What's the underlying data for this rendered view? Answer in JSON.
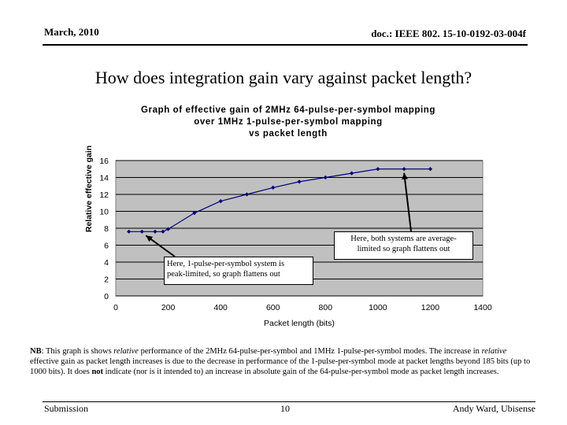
{
  "header": {
    "date": "March, 2010",
    "doc_id": "doc.: IEEE 802. 15-10-0192-03-004f"
  },
  "slide": {
    "title": "How does integration gain vary against packet length?"
  },
  "chart_data": {
    "type": "line",
    "title": "Graph of effective gain of 2MHz 64-pulse-per-symbol mapping over 1MHz 1-pulse-per-symbol mapping vs packet length",
    "title_lines": [
      "Graph of effective gain of 2MHz 64-pulse-per-symbol mapping",
      "over 1MHz 1-pulse-per-symbol mapping",
      "vs packet length"
    ],
    "xlabel": "Packet length (bits)",
    "ylabel": "Relative effective gain",
    "xlim": [
      0,
      1400
    ],
    "ylim": [
      0,
      16
    ],
    "xticks": [
      0,
      200,
      400,
      600,
      800,
      1000,
      1200,
      1400
    ],
    "yticks": [
      0,
      2,
      4,
      6,
      8,
      10,
      12,
      14,
      16
    ],
    "grid": "horizontal",
    "series": [
      {
        "name": "Relative effective gain",
        "x": [
          50,
          100,
          150,
          180,
          200,
          300,
          400,
          500,
          600,
          700,
          800,
          900,
          1000,
          1100,
          1200
        ],
        "y": [
          7.6,
          7.6,
          7.6,
          7.6,
          7.9,
          9.8,
          11.2,
          12.0,
          12.8,
          13.5,
          14.0,
          14.5,
          15.0,
          15.0,
          15.0
        ]
      }
    ],
    "annotations": [
      {
        "text": "Here, both systems are average-limited so graph flattens out",
        "line1": "Here, both systems are average-",
        "line2": "limited so graph flattens out",
        "target_x": 1100,
        "target_y": 15.0
      },
      {
        "text": "Here, 1-pulse-per-symbol system is peak-limited, so graph flattens out",
        "line1": "Here, 1-pulse-per-symbol system is",
        "line2": "peak-limited, so graph flattens out",
        "target_x": 100,
        "target_y": 7.6
      }
    ],
    "colors": {
      "plot_bg": "#c0c0c0",
      "line": "#00007f",
      "marker": "#00007f"
    }
  },
  "note": {
    "nb_label": "NB",
    "text_a": ": This graph is shows ",
    "relative_1": "relative",
    "text_b": " performance of the 2MHz 64-pulse-per-symbol and 1MHz 1-pulse-per-symbol modes. The increase in ",
    "relative_2": "relative",
    "text_c": " effective gain as packet length increases is due to the decrease in performance of the 1-pulse-per-symbol mode at packet lengths beyond 185 bits (up to 1000 bits). It does ",
    "not_word": "not",
    "text_d": " indicate (nor is it intended to) an increase in absolute gain of the 64-pulse-per-symbol mode as packet length increases."
  },
  "footer": {
    "left": "Submission",
    "page": "10",
    "right": "Andy Ward, Ubisense"
  }
}
